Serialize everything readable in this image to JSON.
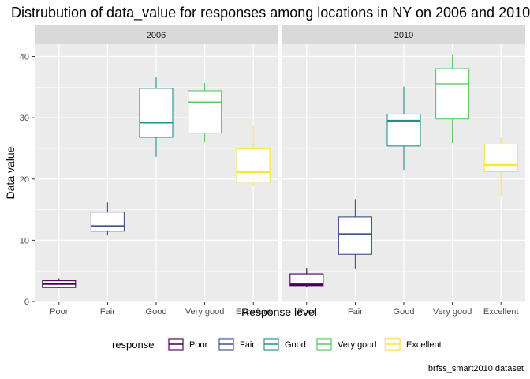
{
  "chart_data": {
    "type": "boxplot",
    "title": "Distrubution of data_value for responses among locations in NY on 2006 and 2010",
    "xlabel": "Response level",
    "ylabel": "Data value",
    "caption": "brfss_smart2010 dataset",
    "ylim": [
      0,
      42
    ],
    "yticks": [
      0,
      10,
      20,
      30,
      40
    ],
    "grid": true,
    "categories": [
      "Poor",
      "Fair",
      "Good",
      "Very good",
      "Excellent"
    ],
    "colors": {
      "Poor": "#440154",
      "Fair": "#3B528B",
      "Good": "#21908C",
      "Very good": "#5DC863",
      "Excellent": "#FDE725"
    },
    "legend": {
      "title": "response",
      "position": "bottom",
      "items": [
        "Poor",
        "Fair",
        "Good",
        "Very good",
        "Excellent"
      ]
    },
    "facets": [
      {
        "label": "2006",
        "boxes": [
          {
            "category": "Poor",
            "min": 2.2,
            "q1": 2.3,
            "median": 2.9,
            "q3": 3.4,
            "max": 3.8
          },
          {
            "category": "Fair",
            "min": 10.8,
            "q1": 11.5,
            "median": 12.3,
            "q3": 14.6,
            "max": 16.2
          },
          {
            "category": "Good",
            "min": 23.6,
            "q1": 26.8,
            "median": 29.2,
            "q3": 34.8,
            "max": 36.6
          },
          {
            "category": "Very good",
            "min": 26.0,
            "q1": 27.5,
            "median": 32.5,
            "q3": 34.4,
            "max": 35.7
          },
          {
            "category": "Excellent",
            "min": 19.0,
            "q1": 19.5,
            "median": 21.1,
            "q3": 24.9,
            "max": 28.8
          }
        ]
      },
      {
        "label": "2010",
        "boxes": [
          {
            "category": "Poor",
            "min": 2.3,
            "q1": 2.6,
            "median": 2.8,
            "q3": 4.5,
            "max": 5.4
          },
          {
            "category": "Fair",
            "min": 5.3,
            "q1": 7.7,
            "median": 11.0,
            "q3": 13.8,
            "max": 16.7
          },
          {
            "category": "Good",
            "min": 21.5,
            "q1": 25.4,
            "median": 29.5,
            "q3": 30.6,
            "max": 35.1
          },
          {
            "category": "Very good",
            "min": 25.9,
            "q1": 29.8,
            "median": 35.5,
            "q3": 38.0,
            "max": 40.3
          },
          {
            "category": "Excellent",
            "min": 17.2,
            "q1": 21.2,
            "median": 22.3,
            "q3": 25.7,
            "max": 26.8
          }
        ]
      }
    ]
  }
}
